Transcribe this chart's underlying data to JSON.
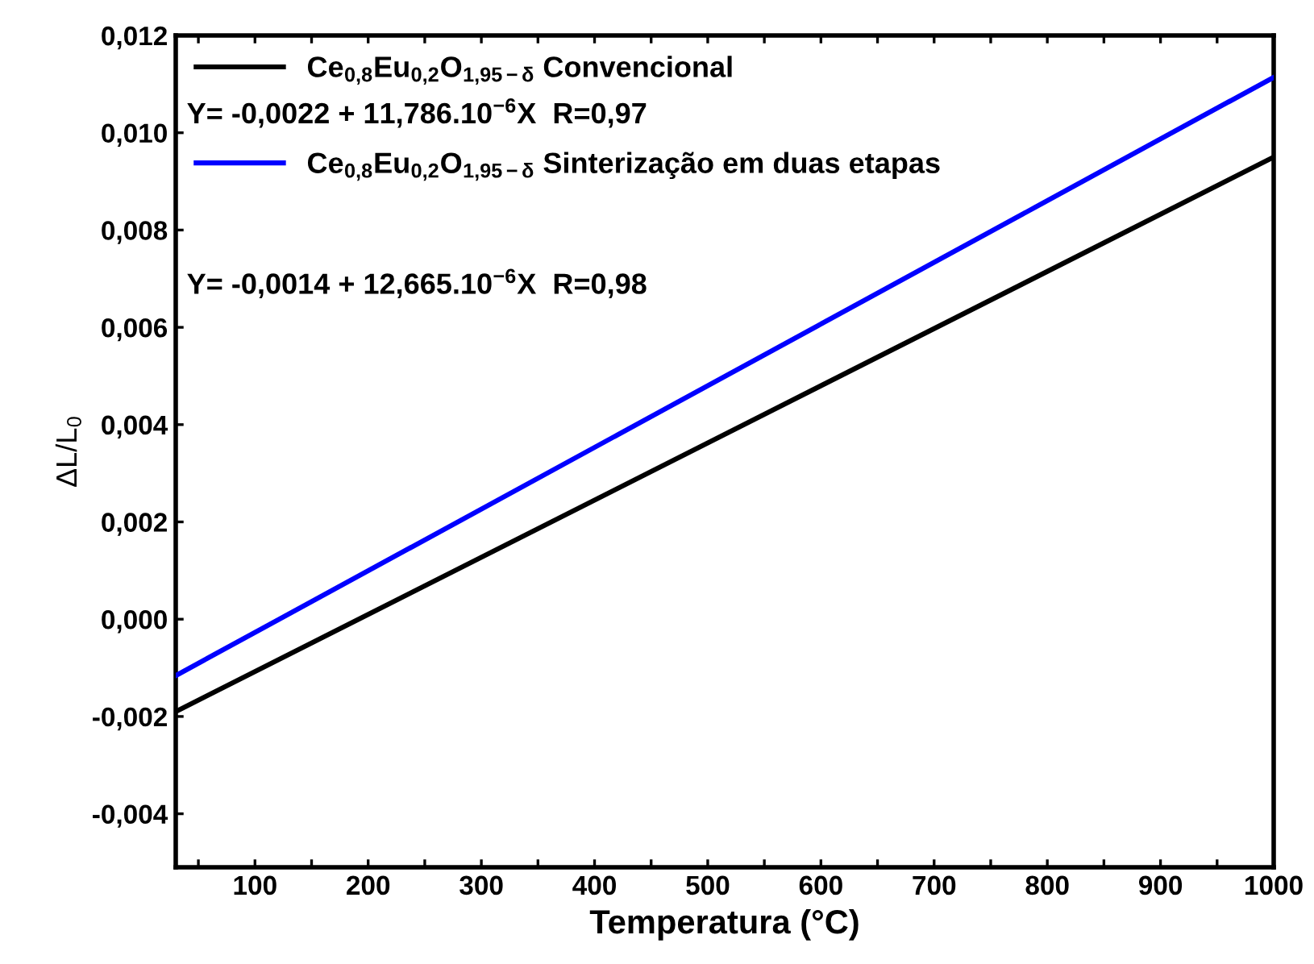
{
  "chart_data": {
    "type": "line",
    "xlabel": "Temperatura (°C)",
    "ylabel": "ΔL/L$_{0}$",
    "xlim": [
      30,
      1000
    ],
    "ylim": [
      -0.0051,
      0.012
    ],
    "xticks": [
      {
        "value": 50,
        "label": null
      },
      100,
      {
        "value": 150,
        "label": null
      },
      200,
      {
        "value": 250,
        "label": null
      },
      300,
      {
        "value": 350,
        "label": null
      },
      400,
      {
        "value": 450,
        "label": null
      },
      500,
      {
        "value": 550,
        "label": null
      },
      600,
      {
        "value": 650,
        "label": null
      },
      700,
      {
        "value": 750,
        "label": null
      },
      800,
      {
        "value": 850,
        "label": null
      },
      900,
      {
        "value": 950,
        "label": null
      },
      1000
    ],
    "yticks": [
      {
        "value": -0.004,
        "label": "-0,004"
      },
      {
        "value": -0.002,
        "label": "-0,002"
      },
      {
        "value": 0,
        "label": "0,000"
      },
      {
        "value": 0.002,
        "label": "0,002"
      },
      {
        "value": 0.004,
        "label": "0,004"
      },
      {
        "value": 0.006,
        "label": "0,006"
      },
      {
        "value": 0.008,
        "label": "0,008"
      },
      {
        "value": 0.01,
        "label": "0,010"
      },
      {
        "value": 0.012,
        "label": "0,012"
      }
    ],
    "series": [
      {
        "name": "Ce$_{0,8}$Eu$_{0,2}$O$_{1,95−δ}$ Convencional",
        "color": "#000000",
        "values": [
          -0.0019,
          0.0095
        ]
      },
      {
        "name": "Ce$_{0,8}$Eu$_{0,2}$O$_{1,95−δ}$ Sinterização em duas etapas",
        "color": "#0000ff",
        "values": [
          -0.00116,
          0.01114
        ]
      }
    ],
    "x": [
      30,
      1000
    ],
    "annotations": [
      "Y= -0,0022 + 11,786.10$^{−6}$X  R=0,97",
      "Y= -0,0014 + 12,665.10$^{−6}$X  R=0,98"
    ],
    "legend": "top left",
    "grid": false,
    "marker": "none",
    "line_style": "solid"
  }
}
